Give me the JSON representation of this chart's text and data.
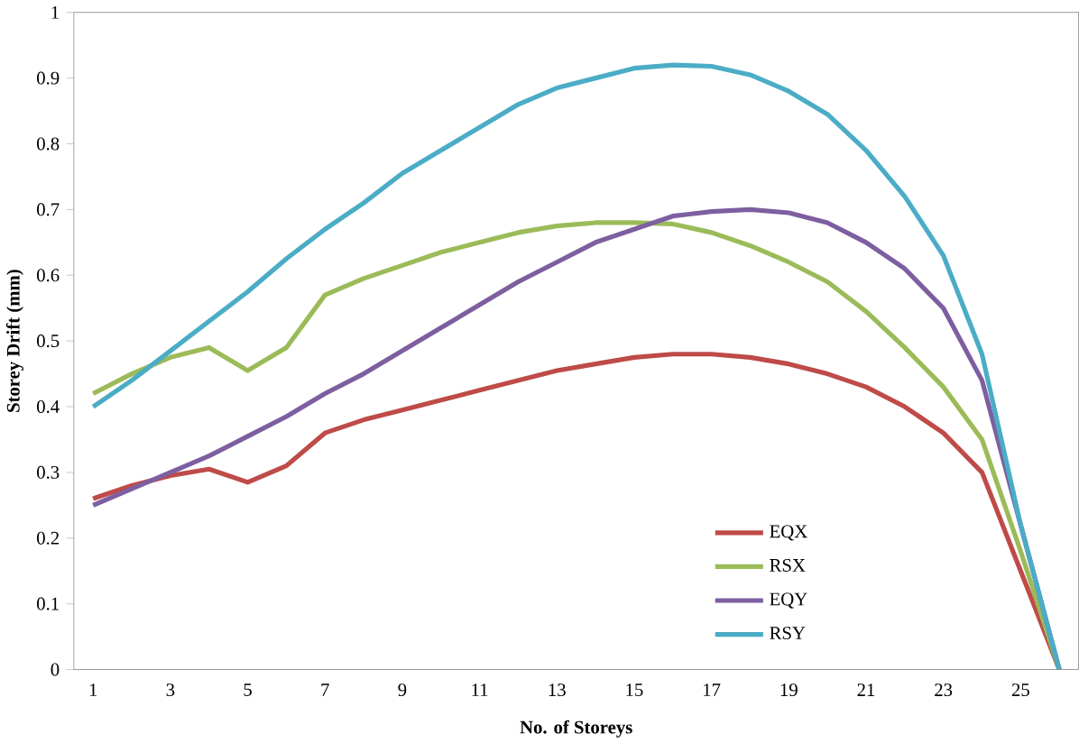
{
  "chart_data": {
    "type": "line",
    "xlabel": "No. of Storeys",
    "ylabel": "Storey Drift (mm)",
    "categories": [
      "1",
      null,
      "3",
      null,
      "5",
      null,
      "7",
      null,
      "9",
      null,
      "11",
      null,
      "13",
      null,
      "15",
      null,
      "17",
      null,
      "19",
      null,
      "21",
      null,
      "23",
      null,
      "25",
      null
    ],
    "ylim": [
      0,
      1
    ],
    "yticks": [
      0,
      0.1,
      0.2,
      0.3,
      0.4,
      0.5,
      0.6,
      0.7,
      0.8,
      0.9,
      1
    ],
    "grid": false,
    "legend": "bottom right",
    "marker": "none",
    "line_style": "solid",
    "series": [
      {
        "name": "EQX",
        "color": "#be4b48",
        "values": [
          0.26,
          0.28,
          0.295,
          0.305,
          0.285,
          0.31,
          0.36,
          0.38,
          0.395,
          0.41,
          0.425,
          0.44,
          0.455,
          0.465,
          0.475,
          0.48,
          0.48,
          0.475,
          0.465,
          0.45,
          0.43,
          0.4,
          0.36,
          0.3,
          0.15,
          0
        ]
      },
      {
        "name": "RSX",
        "color": "#9bbb59",
        "values": [
          0.42,
          0.45,
          0.475,
          0.49,
          0.455,
          0.49,
          0.57,
          0.595,
          0.615,
          0.635,
          0.65,
          0.665,
          0.675,
          0.68,
          0.68,
          0.678,
          0.665,
          0.645,
          0.62,
          0.59,
          0.545,
          0.49,
          0.43,
          0.35,
          0.18,
          0
        ]
      },
      {
        "name": "EQY",
        "color": "#7d5fa0",
        "values": [
          0.25,
          0.275,
          0.3,
          0.325,
          0.355,
          0.385,
          0.42,
          0.45,
          0.485,
          0.52,
          0.555,
          0.59,
          0.62,
          0.65,
          0.67,
          0.69,
          0.697,
          0.7,
          0.695,
          0.68,
          0.65,
          0.61,
          0.55,
          0.44,
          0.22,
          0
        ]
      },
      {
        "name": "RSY",
        "color": "#4bacc6",
        "values": [
          0.4,
          0.44,
          0.485,
          0.53,
          0.575,
          0.625,
          0.67,
          0.71,
          0.755,
          0.79,
          0.825,
          0.86,
          0.885,
          0.9,
          0.915,
          0.92,
          0.918,
          0.905,
          0.88,
          0.845,
          0.79,
          0.72,
          0.63,
          0.48,
          0.22,
          0
        ]
      }
    ]
  }
}
